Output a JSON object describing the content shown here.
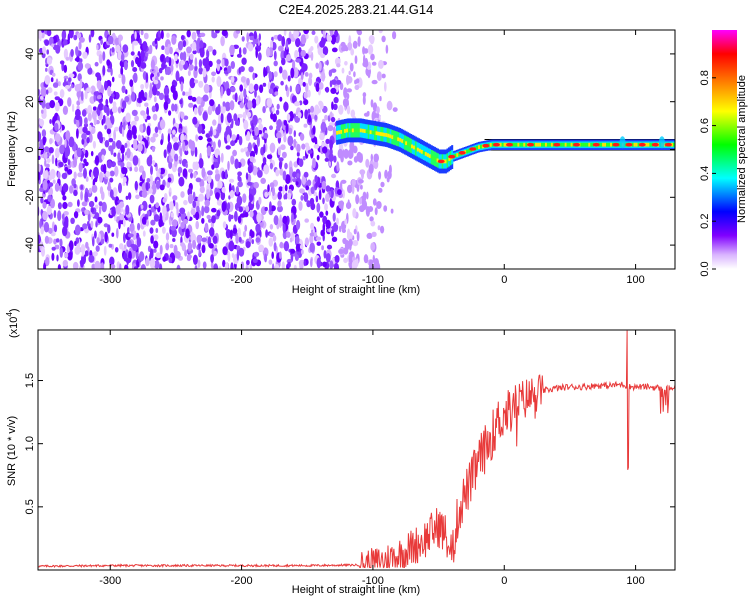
{
  "chart_data": [
    {
      "type": "heatmap",
      "title": "C2E4.2025.283.21.44.G14",
      "xlabel": "Height of straight line (km)",
      "ylabel": "Frequency (Hz)",
      "xlim": [
        -355,
        130
      ],
      "ylim": [
        -50,
        50
      ],
      "xticks": [
        -300,
        -200,
        -100,
        0,
        100
      ],
      "yticks": [
        40,
        20,
        0,
        -20,
        -40
      ],
      "xtick_labels": [
        "-300",
        "-200",
        "-100",
        "0",
        "100"
      ],
      "ytick_labels": [
        "40",
        "20",
        "0",
        "-20",
        "-40"
      ],
      "noise_region_x": [
        -355,
        -110
      ],
      "carrier_trace": {
        "x": [
          -128,
          -120,
          -110,
          -100,
          -90,
          -80,
          -70,
          -60,
          -50,
          -45,
          -40,
          -30,
          -20,
          -10,
          0,
          20,
          40,
          60,
          80,
          100,
          120,
          130
        ],
        "y": [
          7,
          8,
          8,
          7,
          6,
          4,
          1,
          -2,
          -5,
          -5,
          -3,
          -1,
          1,
          2,
          2,
          2,
          2,
          2,
          2,
          2,
          2,
          2
        ]
      },
      "colorbar": {
        "label": "Normalized spectral amplitude",
        "ticks": [
          0.0,
          0.2,
          0.4,
          0.6,
          0.8
        ],
        "tick_labels": [
          "0.0",
          "0.2",
          "0.4",
          "0.6",
          "0.8"
        ],
        "colors": [
          "#ffffff",
          "#d9b3ff",
          "#8000ff",
          "#0000ff",
          "#00ffff",
          "#00ff00",
          "#ffff00",
          "#ff8000",
          "#ff0000",
          "#ff00ff"
        ]
      }
    },
    {
      "type": "line",
      "title": "",
      "xlabel": "Height of straight line (km)",
      "ylabel": "SNR (10 * v/v)",
      "exponent_label": "(x10",
      "exponent_power": "4",
      "exponent_close": ")",
      "xlim": [
        -355,
        130
      ],
      "ylim": [
        0,
        1.9
      ],
      "xticks": [
        -300,
        -200,
        -100,
        0,
        100
      ],
      "yticks": [
        1.5,
        1.0,
        0.5
      ],
      "xtick_labels": [
        "-300",
        "-200",
        "-100",
        "0",
        "100"
      ],
      "ytick_labels": [
        "1.5",
        "1.0",
        "0.5"
      ],
      "series": [
        {
          "name": "SNR",
          "color": "#e83a3a",
          "x": [
            -355,
            -300,
            -250,
            -200,
            -150,
            -110,
            -100,
            -90,
            -80,
            -70,
            -60,
            -50,
            -45,
            -40,
            -35,
            -30,
            -25,
            -20,
            -15,
            -10,
            -5,
            0,
            5,
            10,
            15,
            20,
            25,
            30,
            35,
            40,
            50,
            60,
            70,
            80,
            90,
            95,
            100,
            110,
            120,
            130
          ],
          "y": [
            0.03,
            0.035,
            0.035,
            0.035,
            0.035,
            0.04,
            0.05,
            0.08,
            0.12,
            0.18,
            0.25,
            0.35,
            0.28,
            0.12,
            0.45,
            0.6,
            0.7,
            0.85,
            0.95,
            1.05,
            1.18,
            1.22,
            1.28,
            1.32,
            1.35,
            1.38,
            1.4,
            1.42,
            1.43,
            1.44,
            1.45,
            1.45,
            1.46,
            1.46,
            1.47,
            1.45,
            1.45,
            1.45,
            1.44,
            1.44
          ]
        }
      ]
    }
  ]
}
